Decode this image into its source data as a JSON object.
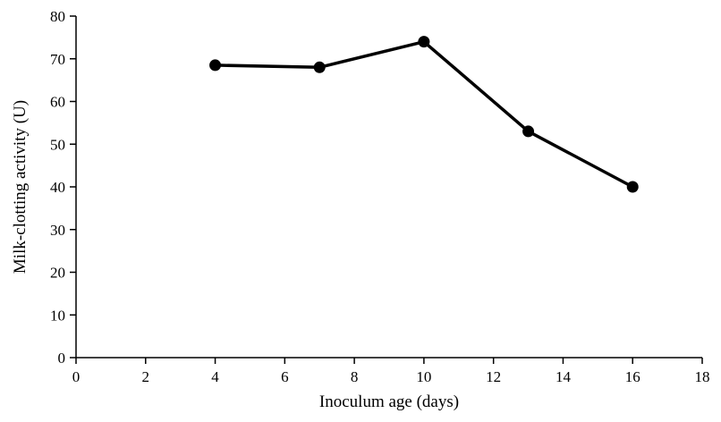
{
  "chart_data": {
    "type": "line",
    "title": "",
    "xlabel": "Inoculum age (days)",
    "ylabel": "Milk-clotting activity (U)",
    "x": [
      4,
      7,
      10,
      13,
      16
    ],
    "series": [
      {
        "name": "Milk-clotting activity",
        "values": [
          68.5,
          68,
          74,
          53,
          40
        ]
      }
    ],
    "xlim": [
      0,
      18
    ],
    "ylim": [
      0,
      80
    ],
    "xticks": [
      0,
      2,
      4,
      6,
      8,
      10,
      12,
      14,
      16,
      18
    ],
    "yticks": [
      0,
      10,
      20,
      30,
      40,
      50,
      60,
      70,
      80
    ],
    "line_color": "#000000",
    "marker": "circle",
    "grid": false,
    "legend_position": "none"
  }
}
